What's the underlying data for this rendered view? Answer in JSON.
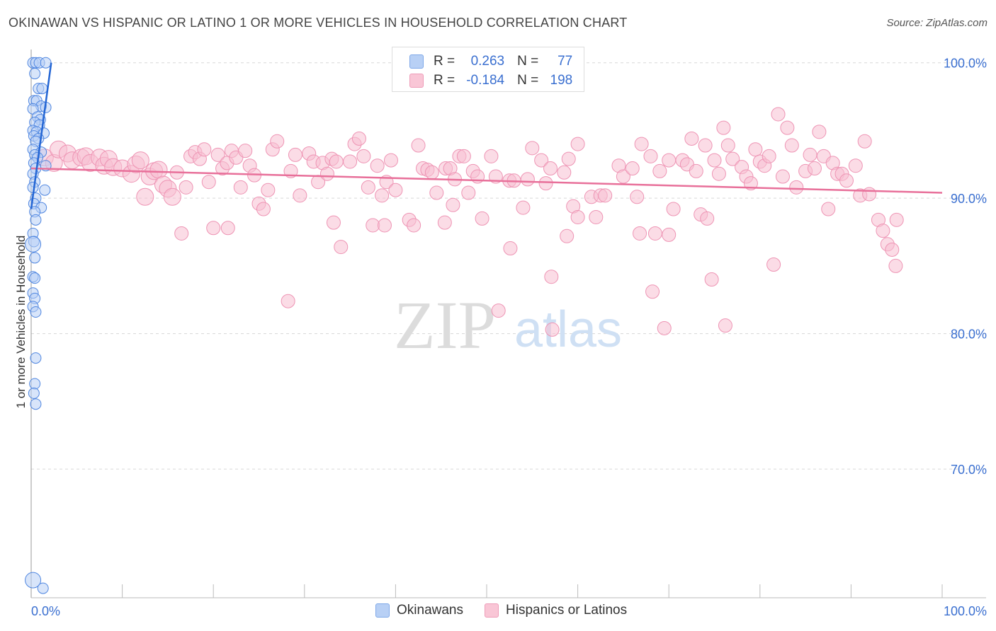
{
  "header": {
    "title": "OKINAWAN VS HISPANIC OR LATINO 1 OR MORE VEHICLES IN HOUSEHOLD CORRELATION CHART",
    "source": "Source: ZipAtlas.com"
  },
  "watermark": {
    "zip": "ZIP",
    "atlas": "atlas"
  },
  "legend": {
    "r_label": "R =",
    "n_label": "N =",
    "rows": [
      {
        "r": "0.263",
        "n": "77"
      },
      {
        "r": "-0.184",
        "n": "198"
      }
    ],
    "bottom": [
      "Okinawans",
      "Hispanics or Latinos"
    ]
  },
  "colors": {
    "blue_fill": "#b8d0f5",
    "blue_stroke": "#4f86e0",
    "blue_line": "#2466d4",
    "pink_fill": "#f7bfd2",
    "pink_stroke": "#ee94b4",
    "pink_line": "#e8709a",
    "tick_label": "#3a6fd0",
    "grid": "#d8d8d8"
  },
  "chart_data": {
    "type": "scatter",
    "title": "OKINAWAN VS HISPANIC OR LATINO 1 OR MORE VEHICLES IN HOUSEHOLD CORRELATION CHART",
    "ylabel": "1 or more Vehicles in Household",
    "xlabel": "",
    "xlim": [
      0,
      100
    ],
    "ylim": [
      60.5,
      101.5
    ],
    "x_tick_labels": [
      "0.0%",
      "100.0%"
    ],
    "y_ticks": [
      {
        "value": 100,
        "label": "100.0%"
      },
      {
        "value": 90,
        "label": "90.0%"
      },
      {
        "value": 80,
        "label": "80.0%"
      },
      {
        "value": 70,
        "label": "70.0%"
      }
    ],
    "grid": true,
    "legend_position": "top-center",
    "series": [
      {
        "name": "Okinawans",
        "r": 0.263,
        "n": 77,
        "trend": {
          "x": [
            0.0,
            2.2
          ],
          "y": [
            89.2,
            100.0
          ]
        },
        "points": [
          [
            0.2,
            100.0
          ],
          [
            0.5,
            100.0
          ],
          [
            0.9,
            100.0
          ],
          [
            1.6,
            100.0
          ],
          [
            0.4,
            99.2
          ],
          [
            0.8,
            98.1
          ],
          [
            1.2,
            98.1
          ],
          [
            0.3,
            97.2
          ],
          [
            0.6,
            97.2
          ],
          [
            1.1,
            96.8
          ],
          [
            1.6,
            96.7
          ],
          [
            0.2,
            96.6
          ],
          [
            0.7,
            96.0
          ],
          [
            1.0,
            95.8
          ],
          [
            0.4,
            95.6
          ],
          [
            0.9,
            95.4
          ],
          [
            0.2,
            95.0
          ],
          [
            0.6,
            94.9
          ],
          [
            1.4,
            94.8
          ],
          [
            0.3,
            94.6
          ],
          [
            0.8,
            94.4
          ],
          [
            0.5,
            94.2
          ],
          [
            0.2,
            93.6
          ],
          [
            1.1,
            93.4
          ],
          [
            0.4,
            93.2
          ],
          [
            0.7,
            93.0
          ],
          [
            0.3,
            92.6
          ],
          [
            1.6,
            92.4
          ],
          [
            0.5,
            92.2
          ],
          [
            0.2,
            91.8
          ],
          [
            0.4,
            91.2
          ],
          [
            0.2,
            90.8
          ],
          [
            1.5,
            90.6
          ],
          [
            0.5,
            90.0
          ],
          [
            0.3,
            89.6
          ],
          [
            1.1,
            89.3
          ],
          [
            0.4,
            89.0
          ],
          [
            0.5,
            88.4
          ],
          [
            0.2,
            87.4
          ],
          [
            0.3,
            86.8
          ],
          [
            0.2,
            86.6
          ],
          [
            0.4,
            85.6
          ],
          [
            0.2,
            84.2
          ],
          [
            0.4,
            84.1
          ],
          [
            0.2,
            83.0
          ],
          [
            0.4,
            82.6
          ],
          [
            0.2,
            82.0
          ],
          [
            0.5,
            81.6
          ],
          [
            0.5,
            78.2
          ],
          [
            0.4,
            76.3
          ],
          [
            0.3,
            75.6
          ],
          [
            0.5,
            74.8
          ],
          [
            0.2,
            61.8
          ],
          [
            1.3,
            61.2
          ]
        ]
      },
      {
        "name": "Hispanics or Latinos",
        "r": -0.184,
        "n": 198,
        "trend": {
          "x": [
            0.0,
            100.0
          ],
          "y": [
            92.2,
            90.4
          ]
        },
        "points": [
          [
            1.5,
            93.0
          ],
          [
            2.5,
            92.6
          ],
          [
            3.0,
            93.6
          ],
          [
            4.0,
            93.3
          ],
          [
            4.5,
            92.8
          ],
          [
            5.5,
            93.0
          ],
          [
            6.0,
            93.1
          ],
          [
            6.5,
            92.6
          ],
          [
            7.5,
            93.0
          ],
          [
            8.0,
            92.4
          ],
          [
            8.5,
            92.9
          ],
          [
            9.0,
            92.3
          ],
          [
            10.0,
            92.2
          ],
          [
            11.0,
            91.8
          ],
          [
            11.5,
            92.5
          ],
          [
            12.0,
            92.8
          ],
          [
            12.5,
            90.1
          ],
          [
            13.0,
            91.6
          ],
          [
            13.5,
            92.0
          ],
          [
            14.0,
            92.1
          ],
          [
            14.5,
            91.0
          ],
          [
            15.0,
            90.7
          ],
          [
            15.5,
            90.1
          ],
          [
            16.0,
            91.9
          ],
          [
            16.5,
            87.4
          ],
          [
            17.0,
            90.8
          ],
          [
            17.5,
            93.1
          ],
          [
            18.0,
            93.4
          ],
          [
            18.5,
            92.9
          ],
          [
            19.0,
            93.6
          ],
          [
            19.5,
            91.2
          ],
          [
            20.0,
            87.8
          ],
          [
            20.5,
            93.2
          ],
          [
            21.0,
            92.2
          ],
          [
            21.5,
            92.6
          ],
          [
            22.0,
            93.5
          ],
          [
            22.5,
            93.0
          ],
          [
            23.0,
            90.8
          ],
          [
            23.5,
            93.5
          ],
          [
            24.0,
            92.4
          ],
          [
            24.5,
            91.7
          ],
          [
            25.0,
            89.6
          ],
          [
            25.5,
            89.2
          ],
          [
            26.0,
            90.6
          ],
          [
            26.5,
            93.6
          ],
          [
            27.0,
            94.2
          ],
          [
            28.5,
            92.0
          ],
          [
            29.0,
            93.2
          ],
          [
            29.5,
            90.2
          ],
          [
            30.5,
            93.3
          ],
          [
            31.0,
            92.7
          ],
          [
            31.5,
            91.2
          ],
          [
            32.0,
            92.6
          ],
          [
            32.5,
            91.8
          ],
          [
            33.0,
            92.9
          ],
          [
            33.5,
            92.7
          ],
          [
            34.0,
            86.4
          ],
          [
            35.0,
            92.7
          ],
          [
            35.5,
            94.0
          ],
          [
            36.0,
            94.4
          ],
          [
            36.5,
            93.1
          ],
          [
            37.0,
            90.8
          ],
          [
            37.5,
            88.0
          ],
          [
            38.0,
            92.4
          ],
          [
            38.5,
            90.2
          ],
          [
            39.0,
            91.2
          ],
          [
            39.5,
            92.8
          ],
          [
            40.0,
            90.6
          ],
          [
            41.5,
            88.4
          ],
          [
            42.0,
            88.0
          ],
          [
            42.5,
            93.9
          ],
          [
            43.0,
            92.2
          ],
          [
            43.5,
            92.1
          ],
          [
            44.0,
            91.9
          ],
          [
            44.5,
            90.4
          ],
          [
            45.5,
            92.2
          ],
          [
            46.0,
            92.2
          ],
          [
            46.5,
            91.4
          ],
          [
            47.0,
            93.1
          ],
          [
            47.5,
            93.1
          ],
          [
            48.0,
            90.4
          ],
          [
            48.5,
            92.0
          ],
          [
            49.0,
            91.6
          ],
          [
            49.5,
            88.5
          ],
          [
            50.5,
            93.1
          ],
          [
            51.0,
            91.6
          ],
          [
            52.5,
            91.3
          ],
          [
            53.0,
            91.3
          ],
          [
            54.0,
            89.3
          ],
          [
            54.5,
            91.4
          ],
          [
            55.0,
            93.7
          ],
          [
            56.0,
            92.8
          ],
          [
            56.5,
            91.1
          ],
          [
            57.0,
            92.2
          ],
          [
            58.5,
            91.9
          ],
          [
            59.0,
            92.9
          ],
          [
            59.5,
            89.4
          ],
          [
            60.0,
            94.0
          ],
          [
            61.5,
            90.1
          ],
          [
            62.0,
            88.6
          ],
          [
            62.5,
            90.2
          ],
          [
            63.0,
            90.2
          ],
          [
            64.5,
            92.4
          ],
          [
            65.0,
            91.6
          ],
          [
            66.0,
            92.2
          ],
          [
            66.5,
            90.1
          ],
          [
            67.0,
            94.0
          ],
          [
            68.0,
            93.1
          ],
          [
            68.5,
            87.4
          ],
          [
            69.0,
            92.0
          ],
          [
            70.0,
            92.8
          ],
          [
            70.5,
            89.2
          ],
          [
            71.5,
            92.8
          ],
          [
            72.0,
            92.5
          ],
          [
            72.5,
            94.4
          ],
          [
            73.0,
            92.0
          ],
          [
            73.5,
            88.8
          ],
          [
            74.0,
            93.9
          ],
          [
            75.0,
            92.8
          ],
          [
            75.5,
            91.8
          ],
          [
            76.0,
            95.2
          ],
          [
            76.5,
            93.9
          ],
          [
            77.0,
            92.9
          ],
          [
            78.0,
            92.3
          ],
          [
            78.5,
            91.6
          ],
          [
            79.0,
            91.1
          ],
          [
            79.5,
            93.6
          ],
          [
            80.0,
            92.7
          ],
          [
            80.5,
            92.4
          ],
          [
            81.0,
            93.1
          ],
          [
            82.0,
            96.2
          ],
          [
            82.5,
            91.6
          ],
          [
            83.0,
            95.2
          ],
          [
            83.5,
            93.9
          ],
          [
            84.0,
            90.8
          ],
          [
            85.0,
            92.0
          ],
          [
            85.5,
            93.2
          ],
          [
            86.0,
            92.2
          ],
          [
            86.5,
            94.9
          ],
          [
            87.0,
            93.1
          ],
          [
            87.5,
            89.2
          ],
          [
            88.0,
            92.6
          ],
          [
            88.5,
            91.8
          ],
          [
            89.0,
            91.8
          ],
          [
            89.5,
            91.3
          ],
          [
            90.5,
            92.4
          ],
          [
            91.0,
            90.2
          ],
          [
            91.5,
            94.2
          ],
          [
            92.0,
            90.3
          ],
          [
            93.0,
            88.4
          ],
          [
            93.5,
            87.6
          ],
          [
            94.0,
            86.6
          ],
          [
            94.5,
            86.2
          ],
          [
            95.0,
            88.4
          ],
          [
            21.6,
            87.8
          ],
          [
            38.8,
            88.0
          ],
          [
            46.3,
            89.5
          ],
          [
            52.6,
            86.3
          ],
          [
            57.1,
            84.2
          ],
          [
            68.2,
            83.1
          ],
          [
            74.7,
            84.0
          ],
          [
            76.2,
            80.6
          ],
          [
            81.5,
            85.1
          ],
          [
            94.9,
            85.0
          ],
          [
            28.2,
            82.4
          ],
          [
            51.3,
            81.7
          ],
          [
            57.2,
            80.3
          ],
          [
            69.5,
            80.4
          ],
          [
            58.8,
            87.2
          ],
          [
            66.8,
            87.4
          ],
          [
            70.0,
            87.3
          ],
          [
            74.2,
            88.5
          ],
          [
            33.2,
            88.2
          ],
          [
            45.4,
            88.2
          ],
          [
            60.0,
            88.6
          ]
        ]
      }
    ]
  }
}
